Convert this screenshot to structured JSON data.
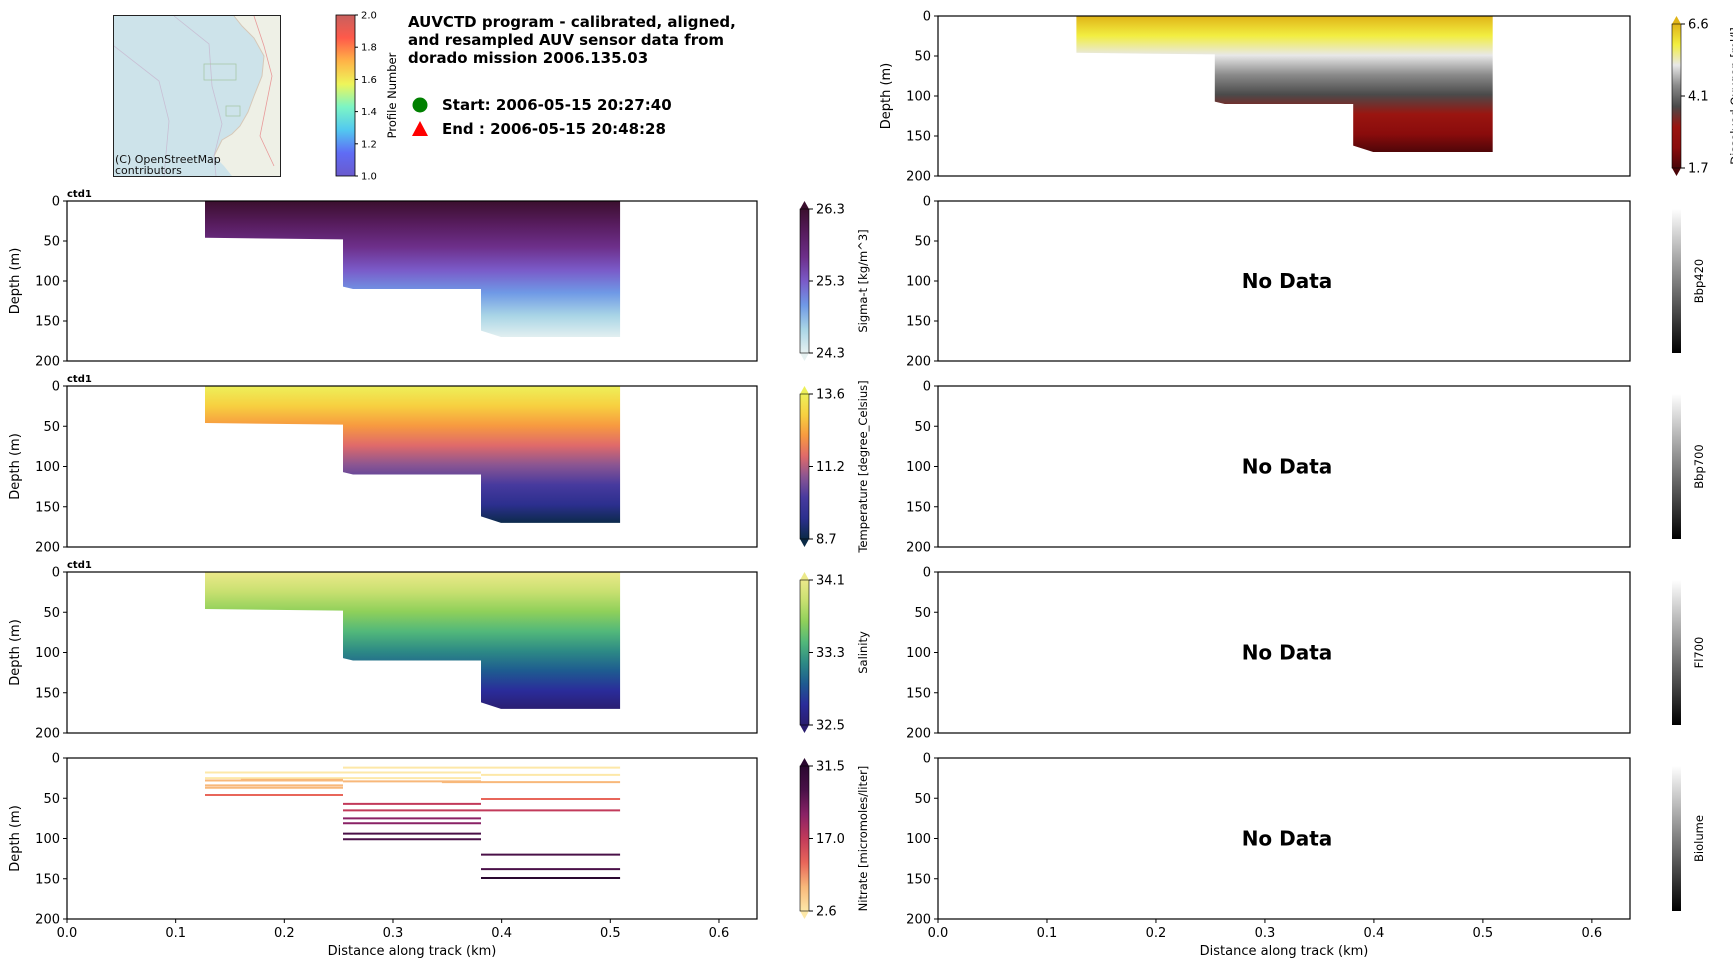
{
  "header": {
    "title": "AUVCTD program - calibrated, aligned, and resampled AUV sensor data from dorado mission 2006.135.03",
    "title_lines": [
      "AUVCTD program - calibrated, aligned,",
      "and resampled AUV sensor data from",
      "dorado mission 2006.135.03"
    ],
    "start_label": "Start: 2006-05-15 20:27:40",
    "end_label": "End  : 2006-05-15 20:48:28",
    "start_marker_color": "#008000",
    "end_marker_color": "#ff0000",
    "start_marker_icon": "green-circle-icon",
    "end_marker_icon": "red-triangle-icon"
  },
  "map": {
    "attribution_lines": [
      "(C) OpenStreetMap",
      "contributors"
    ],
    "water_color": "#cde3ea",
    "land_color": "#eef0e6"
  },
  "profile_colorbar": {
    "label": "Profile Number",
    "ticks": [
      "1.0",
      "1.2",
      "1.4",
      "1.6",
      "1.8",
      "2.0"
    ],
    "colors": [
      "#6a5acd",
      "#5f6cf5",
      "#52c8f0",
      "#7cf5c5",
      "#eef55a",
      "#ffb347",
      "#ff5a4a",
      "#c8605e"
    ]
  },
  "chart_data": [
    {
      "type": "heatmap",
      "panel": "sigma_t",
      "title": "ctd1",
      "xlabel": "",
      "ylabel": "Depth (m)",
      "xlim": [
        0.0,
        0.635
      ],
      "ylim": [
        200,
        0
      ],
      "yticks": [
        "0",
        "50",
        "100",
        "150",
        "200"
      ],
      "colorbar": {
        "label": "Sigma-t [kg/m^3]",
        "ticks": [
          "24.3",
          "25.3",
          "26.3"
        ],
        "min": 24.3,
        "max": 26.3,
        "colors": [
          "#e6f1f1",
          "#a9d5e6",
          "#6f99e6",
          "#7a5ac8",
          "#6d2f8a",
          "#571c5e",
          "#3b0f2e"
        ]
      },
      "coverage": [
        {
          "x_start": 0.127,
          "x_end": 0.254,
          "max_depth": 46
        },
        {
          "x_start": 0.254,
          "x_end": 0.381,
          "max_depth": 110
        },
        {
          "x_start": 0.381,
          "x_end": 0.509,
          "max_depth": 170
        }
      ]
    },
    {
      "type": "heatmap",
      "panel": "temperature",
      "title": "ctd1",
      "xlabel": "",
      "ylabel": "Depth (m)",
      "xlim": [
        0.0,
        0.635
      ],
      "ylim": [
        200,
        0
      ],
      "yticks": [
        "0",
        "50",
        "100",
        "150",
        "200"
      ],
      "colorbar": {
        "label": "Temperature [degree_Celsius]",
        "ticks": [
          "8.7",
          "11.2",
          "13.6"
        ],
        "min": 8.7,
        "max": 13.6,
        "colors": [
          "#0a2a46",
          "#2c2f8e",
          "#473a9e",
          "#8a5592",
          "#e06a6a",
          "#f79a40",
          "#f7d040",
          "#edf05a"
        ]
      },
      "coverage": [
        {
          "x_start": 0.127,
          "x_end": 0.254,
          "max_depth": 46
        },
        {
          "x_start": 0.254,
          "x_end": 0.381,
          "max_depth": 110
        },
        {
          "x_start": 0.381,
          "x_end": 0.509,
          "max_depth": 170
        }
      ]
    },
    {
      "type": "heatmap",
      "panel": "salinity",
      "title": "ctd1",
      "xlabel": "",
      "ylabel": "Depth (m)",
      "xlim": [
        0.0,
        0.635
      ],
      "ylim": [
        200,
        0
      ],
      "yticks": [
        "0",
        "50",
        "100",
        "150",
        "200"
      ],
      "colorbar": {
        "label": "Salinity",
        "ticks": [
          "32.5",
          "33.3",
          "34.1"
        ],
        "min": 32.5,
        "max": 34.1,
        "colors": [
          "#2a1d6e",
          "#2a2c9a",
          "#1e5b90",
          "#2d8a85",
          "#52b87a",
          "#8fd05a",
          "#c8e070",
          "#ece98a"
        ]
      },
      "coverage": [
        {
          "x_start": 0.127,
          "x_end": 0.254,
          "max_depth": 46
        },
        {
          "x_start": 0.254,
          "x_end": 0.381,
          "max_depth": 110
        },
        {
          "x_start": 0.381,
          "x_end": 0.509,
          "max_depth": 170
        }
      ]
    },
    {
      "type": "scatter",
      "panel": "nitrate",
      "title": "",
      "xlabel": "Distance along track (km)",
      "ylabel": "Depth (m)",
      "xlim": [
        0.0,
        0.635
      ],
      "ylim": [
        200,
        0
      ],
      "xticks": [
        "0.0",
        "0.1",
        "0.2",
        "0.3",
        "0.4",
        "0.5",
        "0.6"
      ],
      "yticks": [
        "0",
        "50",
        "100",
        "150",
        "200"
      ],
      "colorbar": {
        "label": "Nitrate [micromoles/liter]",
        "ticks": [
          "2.6",
          "17.0",
          "31.5"
        ],
        "min": 2.6,
        "max": 31.5,
        "colors": [
          "#fde8a8",
          "#f8b87a",
          "#e8665a",
          "#c23a5a",
          "#8a2266",
          "#4a1048",
          "#2a0830"
        ]
      },
      "segments": [
        {
          "x_start": 0.127,
          "x_end": 0.381,
          "depth": 18,
          "value": 5
        },
        {
          "x_start": 0.127,
          "x_end": 0.254,
          "depth": 25,
          "value": 5
        },
        {
          "x_start": 0.16,
          "x_end": 0.254,
          "depth": 27,
          "value": 6
        },
        {
          "x_start": 0.127,
          "x_end": 0.254,
          "depth": 28,
          "value": 6
        },
        {
          "x_start": 0.127,
          "x_end": 0.254,
          "depth": 34,
          "value": 8
        },
        {
          "x_start": 0.127,
          "x_end": 0.254,
          "depth": 37,
          "value": 9
        },
        {
          "x_start": 0.127,
          "x_end": 0.254,
          "depth": 46,
          "value": 12
        },
        {
          "x_start": 0.254,
          "x_end": 0.509,
          "depth": 12,
          "value": 4
        },
        {
          "x_start": 0.254,
          "x_end": 0.381,
          "depth": 25,
          "value": 5
        },
        {
          "x_start": 0.254,
          "x_end": 0.381,
          "depth": 29,
          "value": 6
        },
        {
          "x_start": 0.345,
          "x_end": 0.509,
          "depth": 30,
          "value": 8
        },
        {
          "x_start": 0.381,
          "x_end": 0.509,
          "depth": 21,
          "value": 5
        },
        {
          "x_start": 0.381,
          "x_end": 0.509,
          "depth": 51,
          "value": 13
        },
        {
          "x_start": 0.254,
          "x_end": 0.381,
          "depth": 57,
          "value": 16
        },
        {
          "x_start": 0.254,
          "x_end": 0.509,
          "depth": 65,
          "value": 19
        },
        {
          "x_start": 0.254,
          "x_end": 0.381,
          "depth": 75,
          "value": 23
        },
        {
          "x_start": 0.254,
          "x_end": 0.381,
          "depth": 81,
          "value": 24
        },
        {
          "x_start": 0.254,
          "x_end": 0.381,
          "depth": 94,
          "value": 26
        },
        {
          "x_start": 0.254,
          "x_end": 0.381,
          "depth": 101,
          "value": 26
        },
        {
          "x_start": 0.381,
          "x_end": 0.509,
          "depth": 120,
          "value": 28
        },
        {
          "x_start": 0.381,
          "x_end": 0.509,
          "depth": 138,
          "value": 29
        },
        {
          "x_start": 0.381,
          "x_end": 0.509,
          "depth": 149,
          "value": 31
        }
      ]
    },
    {
      "type": "heatmap",
      "panel": "dissolved_oxygen",
      "title": "",
      "xlabel": "",
      "ylabel": "Depth (m)",
      "xlim": [
        0.0,
        0.635
      ],
      "ylim": [
        200,
        0
      ],
      "yticks": [
        "0",
        "50",
        "100",
        "150",
        "200"
      ],
      "colorbar": {
        "label": "Dissolved Oxygen [ml/l]",
        "ticks": [
          "1.7",
          "4.1",
          "6.6"
        ],
        "min": 1.7,
        "max": 6.6,
        "colors": [
          "#4a0508",
          "#8a0c0c",
          "#9a1510",
          "#4a4a4a",
          "#8a8a8a",
          "#e8e8e8",
          "#f2ee40",
          "#e0b418"
        ]
      },
      "coverage": [
        {
          "x_start": 0.127,
          "x_end": 0.254,
          "max_depth": 46
        },
        {
          "x_start": 0.254,
          "x_end": 0.381,
          "max_depth": 110
        },
        {
          "x_start": 0.381,
          "x_end": 0.509,
          "max_depth": 170
        }
      ]
    },
    {
      "type": "heatmap",
      "panel": "bbp420",
      "status": "No Data",
      "ylabel": "",
      "xlim": [
        0.0,
        0.635
      ],
      "ylim": [
        200,
        0
      ],
      "yticks": [
        "0",
        "50",
        "100",
        "150",
        "200"
      ],
      "colorbar": {
        "label": "Bbp420",
        "ticks": []
      }
    },
    {
      "type": "heatmap",
      "panel": "bbp700",
      "status": "No Data",
      "ylabel": "",
      "xlim": [
        0.0,
        0.635
      ],
      "ylim": [
        200,
        0
      ],
      "yticks": [
        "0",
        "50",
        "100",
        "150",
        "200"
      ],
      "colorbar": {
        "label": "Bbp700",
        "ticks": []
      }
    },
    {
      "type": "heatmap",
      "panel": "fl700",
      "status": "No Data",
      "ylabel": "",
      "xlim": [
        0.0,
        0.635
      ],
      "ylim": [
        200,
        0
      ],
      "yticks": [
        "0",
        "50",
        "100",
        "150",
        "200"
      ],
      "colorbar": {
        "label": "Fl700",
        "ticks": []
      }
    },
    {
      "type": "heatmap",
      "panel": "biolume",
      "status": "No Data",
      "xlabel": "Distance along track (km)",
      "ylabel": "",
      "xlim": [
        0.0,
        0.635
      ],
      "ylim": [
        200,
        0
      ],
      "xticks": [
        "0.0",
        "0.1",
        "0.2",
        "0.3",
        "0.4",
        "0.5",
        "0.6"
      ],
      "yticks": [
        "0",
        "50",
        "100",
        "150",
        "200"
      ],
      "colorbar": {
        "label": "Biolume",
        "ticks": []
      }
    }
  ]
}
